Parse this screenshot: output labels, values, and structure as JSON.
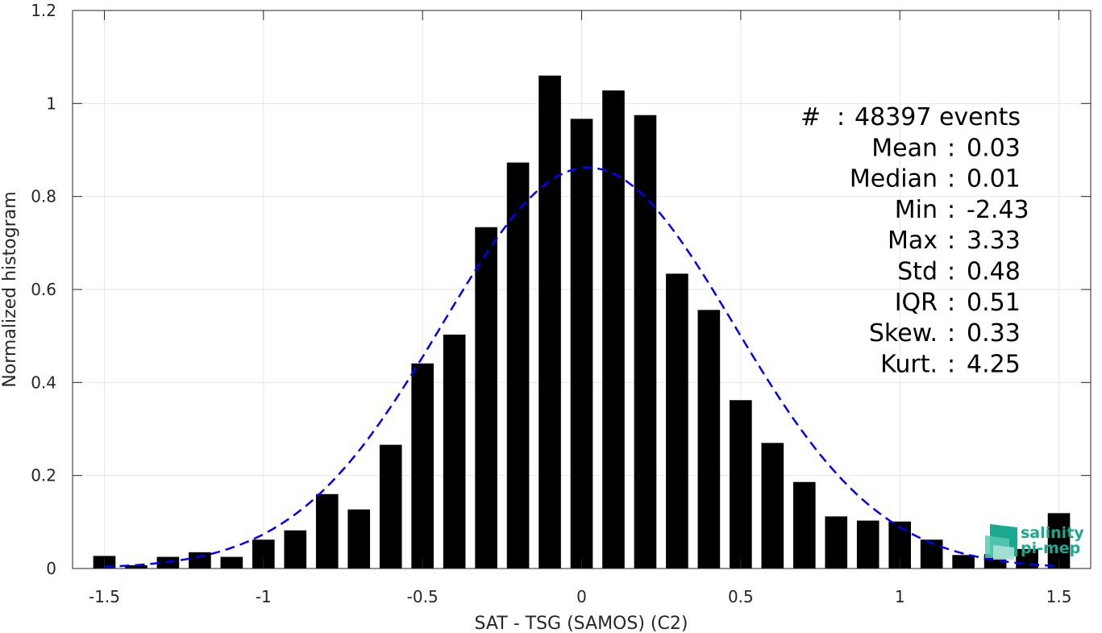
{
  "chart_data": {
    "type": "bar",
    "xlabel": "SAT - TSG (SAMOS) (C2)",
    "ylabel": "Normalized histogram",
    "xlim": [
      -1.6,
      1.6
    ],
    "ylim": [
      0,
      1.2
    ],
    "x_ticks": [
      "-1.5",
      "-1",
      "-0.5",
      "0",
      "0.5",
      "1",
      "1.5"
    ],
    "y_ticks": [
      "0",
      "0.2",
      "0.4",
      "0.6",
      "0.8",
      "1",
      "1.2"
    ],
    "grid": true,
    "x": [
      -1.5,
      -1.4,
      -1.3,
      -1.2,
      -1.1,
      -1.0,
      -0.9,
      -0.8,
      -0.7,
      -0.6,
      -0.5,
      -0.4,
      -0.3,
      -0.2,
      -0.1,
      0.0,
      0.1,
      0.2,
      0.3,
      0.4,
      0.5,
      0.6,
      0.7,
      0.8,
      0.9,
      1.0,
      1.1,
      1.2,
      1.3,
      1.4,
      1.5
    ],
    "values": [
      0.027,
      0.007,
      0.025,
      0.035,
      0.025,
      0.062,
      0.082,
      0.16,
      0.127,
      0.266,
      0.441,
      0.503,
      0.734,
      0.873,
      1.06,
      0.967,
      1.028,
      0.975,
      0.634,
      0.556,
      0.362,
      0.27,
      0.186,
      0.112,
      0.103,
      0.101,
      0.062,
      0.029,
      0.031,
      0.042,
      0.119
    ],
    "bar_color": "#000000",
    "fit_curve": {
      "style": "dashed",
      "color": "#0000ff",
      "peak_x": 0.02,
      "peak_y": 0.862,
      "sigma": 0.46
    },
    "annotations": [
      {
        "label": "#",
        "sep": ":",
        "value": "48397 events"
      },
      {
        "label": "Mean",
        "sep": ":",
        "value": "0.03"
      },
      {
        "label": "Median",
        "sep": ":",
        "value": "0.01"
      },
      {
        "label": "Min",
        "sep": ":",
        "value": "-2.43"
      },
      {
        "label": "Max",
        "sep": ":",
        "value": "3.33"
      },
      {
        "label": "Std",
        "sep": ":",
        "value": "0.48"
      },
      {
        "label": "IQR",
        "sep": ":",
        "value": "0.51"
      },
      {
        "label": "Skew.",
        "sep": ":",
        "value": "0.33"
      },
      {
        "label": "Kurt.",
        "sep": ":",
        "value": "4.25"
      }
    ]
  },
  "logo": {
    "line1": "salinity",
    "line2": "pi-mep",
    "color": "#1aa88f"
  }
}
